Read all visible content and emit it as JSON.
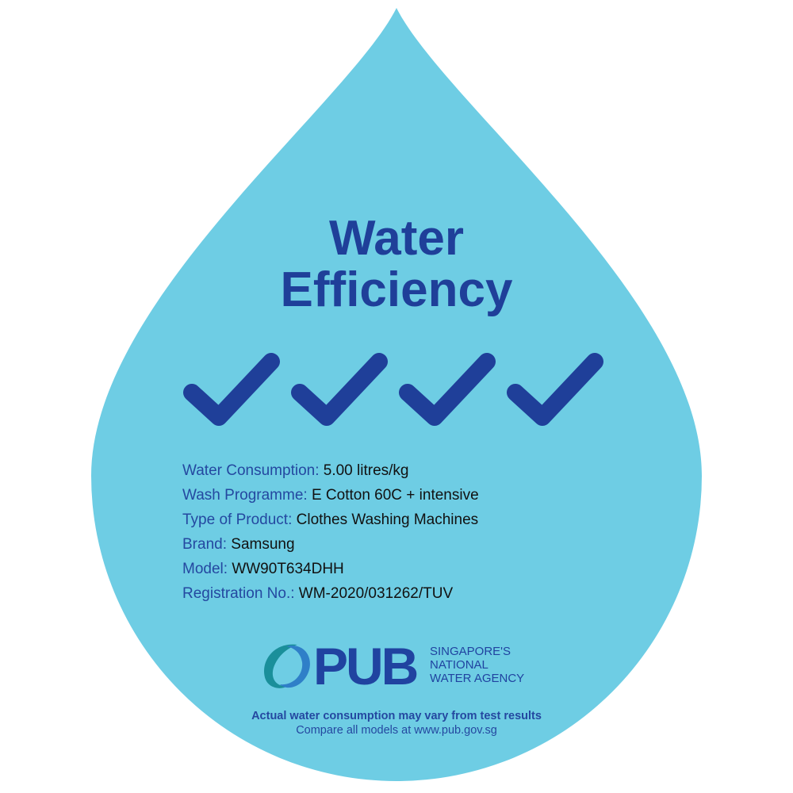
{
  "colors": {
    "drop": "#6ecde4",
    "title": "#1f3f99",
    "label": "#2448a0",
    "value": "#111111",
    "logo_teal": "#1a8f9a",
    "logo_blue": "#2f7fc8"
  },
  "title": {
    "line1": "Water",
    "line2": "Efficiency"
  },
  "rating": {
    "ticks": 4,
    "icon": "checkmark-icon"
  },
  "details": [
    {
      "label": "Water Consumption:",
      "value": "5.00 litres/kg"
    },
    {
      "label": "Wash Programme:",
      "value": "E Cotton 60C + intensive"
    },
    {
      "label": "Type of Product:",
      "value": "Clothes Washing Machines"
    },
    {
      "label": "Brand:",
      "value": "Samsung"
    },
    {
      "label": "Model:",
      "value": "WW90T634DHH"
    },
    {
      "label": "Registration No.:",
      "value": "WM-2020/031262/TUV"
    }
  ],
  "logo": {
    "name": "PUB",
    "tagline1": "SINGAPORE'S",
    "tagline2": "NATIONAL",
    "tagline3": "WATER AGENCY"
  },
  "footer": {
    "disclaimer": "Actual water consumption may vary from test results",
    "compare": "Compare all models at www.pub.gov.sg"
  }
}
